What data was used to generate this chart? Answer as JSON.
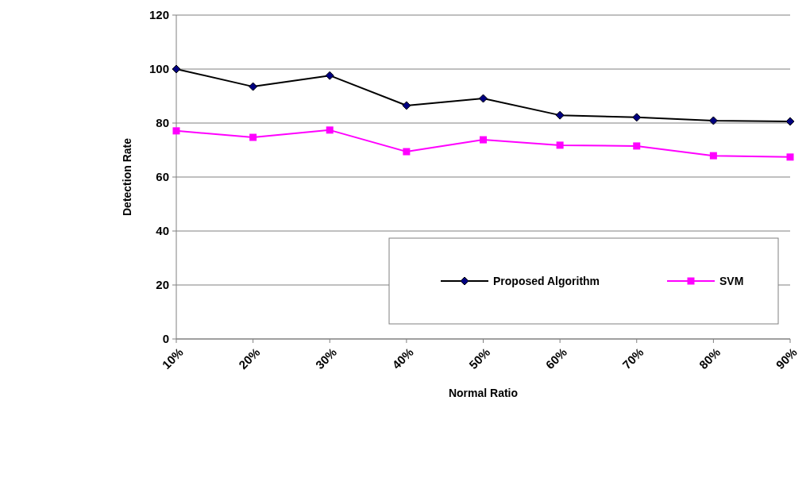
{
  "chart_data": {
    "type": "line",
    "xlabel": "Normal Ratio",
    "ylabel": "Detection Rate",
    "categories": [
      "10%",
      "20%",
      "30%",
      "40%",
      "50%",
      "60%",
      "70%",
      "80%",
      "90%"
    ],
    "series": [
      {
        "name": "Proposed Algorithm",
        "color": "#000000",
        "marker": "diamond",
        "values": [
          100,
          93.5,
          97.6,
          86.5,
          89.1,
          82.9,
          82.1,
          80.9,
          80.6
        ]
      },
      {
        "name": "SVM",
        "color": "#ff00ff",
        "marker": "square",
        "values": [
          77.1,
          74.7,
          77.4,
          69.4,
          73.8,
          71.8,
          71.5,
          67.9,
          67.4
        ]
      }
    ],
    "ylim": [
      0,
      120
    ],
    "yticks": [
      0,
      20,
      40,
      60,
      80,
      100,
      120
    ],
    "grid": "y",
    "legend": "bottom right",
    "line_style": "solid"
  }
}
